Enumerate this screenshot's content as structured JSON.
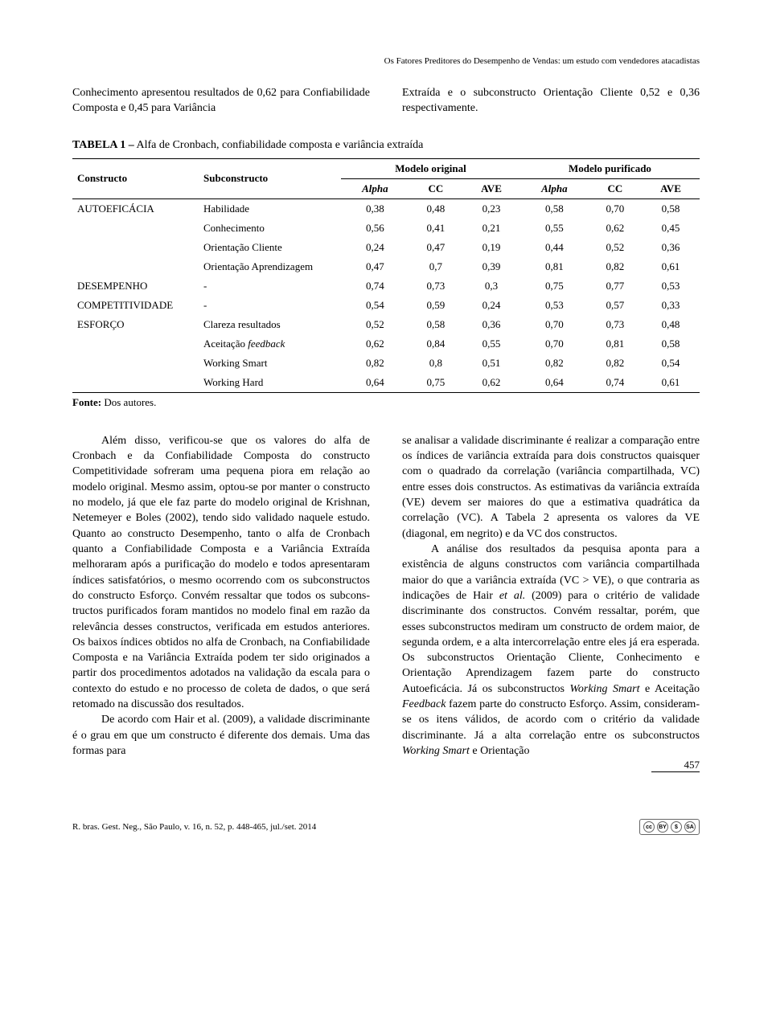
{
  "running_header": "Os Fatores Preditores do Desempenho de Vendas: um estudo com vendedores atacadistas",
  "intro": {
    "left": "Conhecimento apresentou resultados de 0,62 para Confiabilidade Composta e 0,45 para Variância",
    "right": "Extraída e o subconstructo Orientação Cliente 0,52 e 0,36 respectivamente."
  },
  "table": {
    "caption_label": "TABELA 1 –",
    "caption_text": " Alfa de Cronbach, confiabilidade composta e variância extraída",
    "header_constructo": "Constructo",
    "header_subconstructo": "Subconstructo",
    "header_group1": "Modelo original",
    "header_group2": "Modelo purificado",
    "subhead": [
      "Alpha",
      "CC",
      "AVE",
      "Alpha",
      "CC",
      "AVE"
    ],
    "rows": [
      {
        "c": "AUTOEFICÁCIA",
        "s": "Habilidade",
        "v": [
          "0,38",
          "0,48",
          "0,23",
          "0,58",
          "0,70",
          "0,58"
        ]
      },
      {
        "c": "",
        "s": "Conhecimento",
        "v": [
          "0,56",
          "0,41",
          "0,21",
          "0,55",
          "0,62",
          "0,45"
        ]
      },
      {
        "c": "",
        "s": "Orientação Cliente",
        "v": [
          "0,24",
          "0,47",
          "0,19",
          "0,44",
          "0,52",
          "0,36"
        ]
      },
      {
        "c": "",
        "s": "Orientação Aprendizagem",
        "v": [
          "0,47",
          "0,7",
          "0,39",
          "0,81",
          "0,82",
          "0,61"
        ]
      },
      {
        "c": "DESEMPENHO",
        "s": "-",
        "v": [
          "0,74",
          "0,73",
          "0,3",
          "0,75",
          "0,77",
          "0,53"
        ],
        "gap": true
      },
      {
        "c": "COMPETITIVIDADE",
        "s": "-",
        "v": [
          "0,54",
          "0,59",
          "0,24",
          "0,53",
          "0,57",
          "0,33"
        ]
      },
      {
        "c": "ESFORÇO",
        "s": "Clareza resultados",
        "v": [
          "0,52",
          "0,58",
          "0,36",
          "0,70",
          "0,73",
          "0,48"
        ]
      },
      {
        "c": "",
        "s": "Aceitação feedback",
        "s_html": "Aceitação <em>feedback</em>",
        "v": [
          "0,62",
          "0,84",
          "0,55",
          "0,70",
          "0,81",
          "0,58"
        ]
      },
      {
        "c": "",
        "s": "Working Smart",
        "v": [
          "0,82",
          "0,8",
          "0,51",
          "0,82",
          "0,82",
          "0,54"
        ]
      },
      {
        "c": "",
        "s": "Working Hard",
        "v": [
          "0,64",
          "0,75",
          "0,62",
          "0,64",
          "0,74",
          "0,61"
        ],
        "last": true
      }
    ],
    "fonte_label": "Fonte:",
    "fonte_text": " Dos autores."
  },
  "body": {
    "leftcol_html": "<span class=\"indent\" style=\"display:inline-block;width:36px;\"></span>Além disso, verificou-se que os valores do alfa de Cronbach e da Confiabilidade Composta do constructo Competitividade sofreram uma pe­quena piora em relação ao modelo original. Mes­mo assim, optou-se por manter o constructo no modelo, já que ele faz parte do modelo original de Krishnan, Netemeyer e Boles (2002), tendo sido validado naquele estudo. Quanto ao constructo Desempenho, tanto o alfa de Cronbach quanto a Confiabilidade Composta e a Variância Extraída melhoraram após a purificação do modelo e to­dos apresentaram índices satisfatórios, o mesmo ocorrendo com os subconstructos do constructo Esforço. Convém ressaltar que todos os subcons­tructos purificados foram mantidos no modelo final em razão da relevância desses constructos, verificada em estudos anteriores. Os baixos índices obtidos no alfa de Cronbach, na Confiabilidade Composta e na Variância Extraída podem ter sido originados a partir dos procedimentos adotados na validação da escala para o contexto do estudo e no processo de coleta de dados, o que será retomado na discussão dos resultados.<br><span style=\"display:inline-block;width:36px;\"></span>De acordo com Hair et al. (2009), a valida­de discriminante é o grau em que um constructo é diferente dos demais. Uma das formas para",
    "rightcol_html": "se analisar a validade discriminante é realizar a comparação entre os índices de variância extraída para dois constructos quaisquer com o quadrado da correlação (variância compartilhada, VC) entre esses dois constructos. As estimativas da variância extraída (VE) devem ser maiores do que a esti­mativa quadrática da correlação (VC). A Tabela 2 apresenta os valores da VE (diagonal, em negrito) e da VC dos constructos.<br><span style=\"display:inline-block;width:36px;\"></span>A análise dos resultados da pesquisa aponta para a existência de alguns constructos com va­riância compartilhada maior do que a variância extraída (VC &gt; VE), o que contraria as indicações de Hair <em>et al.</em> (2009) para o critério de validade discriminante dos constructos. Convém ressaltar, porém, que esses subconstructos mediram um constructo de ordem maior, de segunda ordem, e a alta intercorrelação entre eles já era esperada. Os subconstructos Orientação Cliente, Conheci­mento e Orientação Aprendizagem fazem parte do constructo Autoeficácia. Já os subconstructos <em>Working Smart</em> e Aceitação <em>Feedback</em> fazem parte do constructo Esforço. Assim, consideram-se os itens válidos, de acordo com o critério da validade discriminante. Já a alta correlação entre os subconstructos <em>Working Smart</em> e Orientação"
  },
  "footer": {
    "citation": "R. bras. Gest. Neg., São Paulo, v. 16, n. 52, p. 448-465, jul./set. 2014",
    "page_number": "457"
  },
  "styling": {
    "body_font_size": 14,
    "table_font_size": 13,
    "text_color": "#000000",
    "background": "#ffffff",
    "border_color": "#000000"
  }
}
